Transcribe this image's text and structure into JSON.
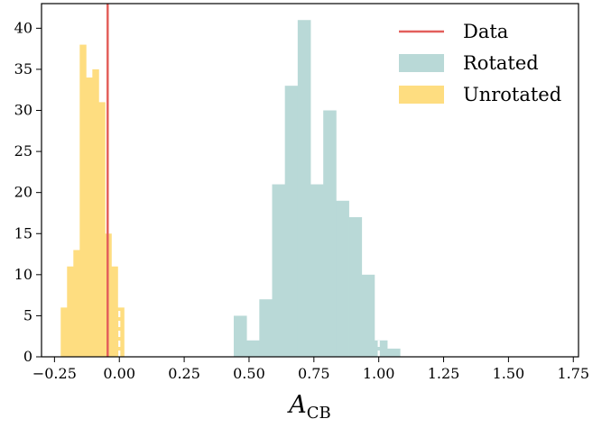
{
  "chart_data": {
    "type": "histogram",
    "xlabel_main": "A",
    "xlabel_sub": "CB",
    "ylabel": "",
    "title": "",
    "xlim": [
      -0.3,
      1.77
    ],
    "ylim": [
      0,
      43
    ],
    "xticks": [
      -0.25,
      0.0,
      0.25,
      0.5,
      0.75,
      1.0,
      1.25,
      1.5,
      1.75
    ],
    "xtick_labels": [
      "−0.25",
      "0.00",
      "0.25",
      "0.50",
      "0.75",
      "1.00",
      "1.25",
      "1.50",
      "1.75"
    ],
    "yticks": [
      0,
      5,
      10,
      15,
      20,
      25,
      30,
      35,
      40
    ],
    "ytick_labels": [
      "0",
      "5",
      "10",
      "15",
      "20",
      "25",
      "30",
      "35",
      "40"
    ],
    "legend_position": "top-right",
    "series": [
      {
        "name": "Rotated",
        "kind": "histogram",
        "color": "#b9d9d7",
        "bin_start": 0.441,
        "bin_width": 0.0493,
        "counts": [
          5,
          2,
          7,
          21,
          33,
          41,
          21,
          30,
          19,
          17,
          10,
          2,
          1
        ]
      },
      {
        "name": "Unrotated",
        "kind": "histogram",
        "color": "#fedd80",
        "bin_start": -0.226,
        "bin_width": 0.0244,
        "counts": [
          6,
          11,
          13,
          38,
          34,
          35,
          31,
          15,
          11,
          6
        ]
      },
      {
        "name": "Data",
        "kind": "vline",
        "color": "#e35f5b",
        "x": -0.045
      }
    ],
    "reference_lines": [
      {
        "x": 0.0,
        "color": "#ffffff",
        "style": "dashed"
      },
      {
        "x": 1.0,
        "color": "#ffffff",
        "style": "dashed"
      }
    ]
  }
}
